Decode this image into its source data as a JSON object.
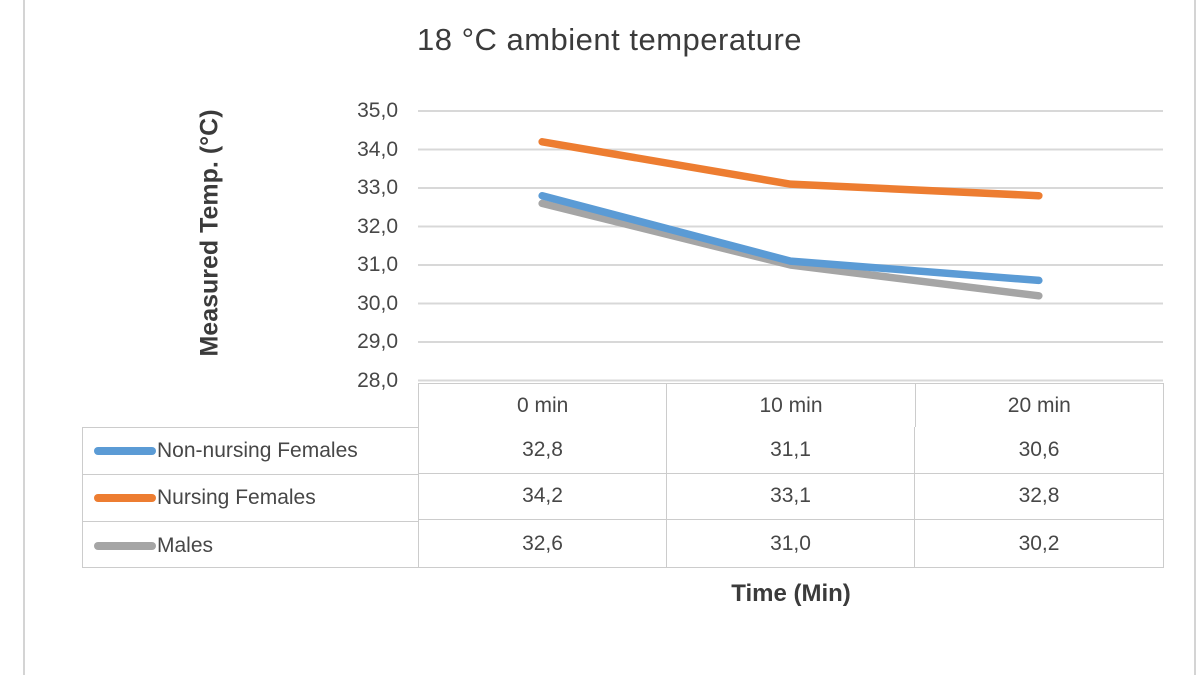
{
  "chart": {
    "title": "18 °C ambient temperature",
    "y_axis_title": "Measured Temp. (°C)",
    "x_axis_title": "Time (Min)",
    "y_tick_labels": [
      "35,0",
      "34,0",
      "33,0",
      "32,0",
      "31,0",
      "30,0",
      "29,0",
      "28,0"
    ],
    "y_tick_values": [
      35.0,
      34.0,
      33.0,
      32.0,
      31.0,
      30.0,
      29.0,
      28.0
    ]
  },
  "chart_data": {
    "type": "line",
    "title": "18 °C ambient temperature",
    "xlabel": "Time (Min)",
    "ylabel": "Measured Temp. (°C)",
    "categories": [
      "0 min",
      "10 min",
      "20 min"
    ],
    "series": [
      {
        "name": "Non-nursing Females",
        "values": [
          32.8,
          31.1,
          30.6
        ],
        "display_values": [
          "32,8",
          "31,1",
          "30,6"
        ],
        "color": "#5B9BD5"
      },
      {
        "name": "Nursing Females",
        "values": [
          34.2,
          33.1,
          32.8
        ],
        "display_values": [
          "34,2",
          "33,1",
          "32,8"
        ],
        "color": "#ED7D31"
      },
      {
        "name": "Males",
        "values": [
          32.6,
          31.0,
          30.2
        ],
        "display_values": [
          "32,6",
          "31,0",
          "30,2"
        ],
        "color": "#A5A5A5"
      }
    ],
    "ylim": [
      28,
      35
    ],
    "grid": true,
    "legend_position": "data-table-left",
    "data_table_shown": true
  },
  "colors": {
    "gridline": "#d8d8d8",
    "table_border": "#cccccc",
    "text": "#3f3f3f"
  }
}
